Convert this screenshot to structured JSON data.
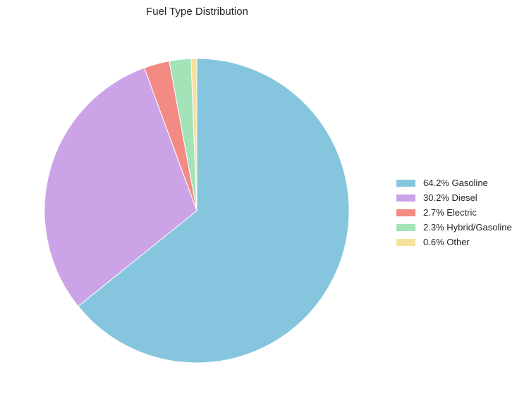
{
  "chart_data": {
    "type": "pie",
    "title": "Fuel Type Distribution",
    "slices": [
      {
        "label": "64.2% Gasoline",
        "category": "Gasoline",
        "value": 64.2,
        "color": "#85C6DE"
      },
      {
        "label": "30.2% Diesel",
        "category": "Diesel",
        "value": 30.2,
        "color": "#CCA3E6"
      },
      {
        "label": "2.7% Electric",
        "category": "Electric",
        "value": 2.7,
        "color": "#F38A84"
      },
      {
        "label": "2.3% Hybrid/Gasoline",
        "category": "Hybrid/Gasoline",
        "value": 2.3,
        "color": "#A3E3B8"
      },
      {
        "label": "0.6% Other",
        "category": "Other",
        "value": 0.6,
        "color": "#F6E19C"
      }
    ],
    "legend_position": "right",
    "start": "top",
    "direction": "clockwise"
  }
}
